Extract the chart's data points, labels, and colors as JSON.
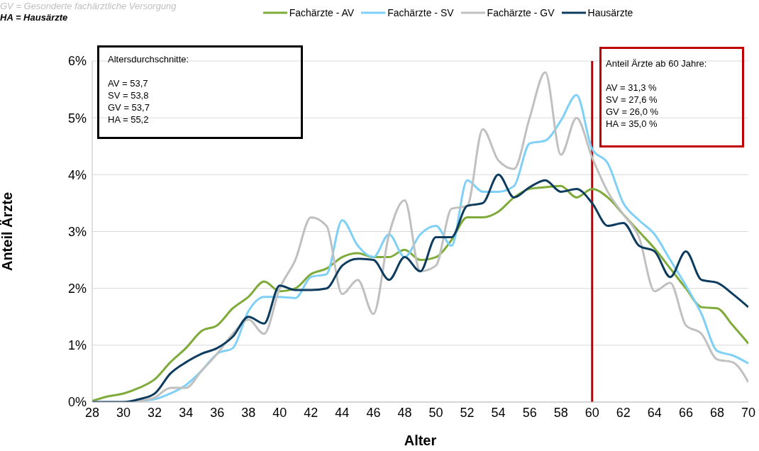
{
  "chart_data": {
    "type": "line",
    "xlabel": "Alter",
    "ylabel": "Anteil Ärzte",
    "x": [
      28,
      29,
      30,
      31,
      32,
      33,
      34,
      35,
      36,
      37,
      38,
      39,
      40,
      41,
      42,
      43,
      44,
      45,
      46,
      47,
      48,
      49,
      50,
      51,
      52,
      53,
      54,
      55,
      56,
      57,
      58,
      59,
      60,
      61,
      62,
      63,
      64,
      65,
      66,
      67,
      68,
      69,
      70
    ],
    "series": [
      {
        "name": "Fachärzte - AV",
        "color": "#7fab3a",
        "values": [
          0.02,
          0.1,
          0.15,
          0.25,
          0.4,
          0.7,
          0.95,
          1.25,
          1.35,
          1.65,
          1.85,
          2.12,
          1.95,
          2.0,
          2.25,
          2.35,
          2.55,
          2.62,
          2.55,
          2.55,
          2.68,
          2.5,
          2.55,
          2.85,
          3.25,
          3.25,
          3.35,
          3.6,
          3.75,
          3.78,
          3.8,
          3.6,
          3.75,
          3.6,
          3.3,
          3.0,
          2.7,
          2.35,
          2.0,
          1.67,
          1.65,
          1.35,
          1.03
        ]
      },
      {
        "name": "Fachärzte - SV",
        "color": "#7fd0f7",
        "values": [
          null,
          null,
          0,
          0.02,
          0.05,
          0.15,
          0.3,
          0.55,
          0.85,
          0.95,
          1.6,
          1.85,
          1.85,
          1.83,
          2.2,
          2.25,
          3.2,
          2.75,
          2.55,
          2.95,
          2.55,
          2.95,
          3.1,
          2.75,
          3.9,
          3.7,
          3.7,
          3.8,
          4.55,
          4.6,
          4.95,
          5.4,
          4.45,
          4.2,
          3.5,
          3.2,
          2.95,
          2.5,
          2.05,
          1.55,
          0.9,
          0.82,
          0.68
        ]
      },
      {
        "name": "Fachärzte - GV",
        "color": "#c0c0c0",
        "values": [
          0,
          0,
          0,
          0.02,
          0.08,
          0.25,
          0.25,
          0.55,
          0.85,
          1.2,
          1.45,
          1.2,
          2.0,
          2.5,
          3.25,
          3.1,
          1.9,
          2.15,
          1.55,
          2.95,
          3.55,
          2.3,
          2.4,
          3.4,
          3.45,
          4.8,
          4.25,
          4.1,
          5.0,
          5.8,
          4.35,
          5.0,
          4.3,
          3.7,
          3.3,
          2.9,
          1.95,
          2.1,
          1.35,
          1.2,
          0.75,
          0.7,
          0.35
        ]
      },
      {
        "name": "Hausärzte",
        "color": "#0d3c5f",
        "values": [
          0,
          0,
          0,
          0.05,
          0.15,
          0.5,
          0.7,
          0.85,
          0.95,
          1.15,
          1.5,
          1.38,
          2.05,
          1.97,
          1.97,
          2.0,
          2.4,
          2.52,
          2.5,
          2.15,
          2.55,
          2.3,
          2.9,
          2.9,
          3.45,
          3.5,
          4.0,
          3.6,
          3.78,
          3.9,
          3.7,
          3.75,
          3.5,
          3.1,
          3.15,
          2.75,
          2.65,
          2.2,
          2.65,
          2.15,
          2.1,
          1.9,
          1.67
        ]
      }
    ],
    "xlim": [
      28,
      70
    ],
    "xticks": [
      28,
      30,
      32,
      34,
      36,
      38,
      40,
      42,
      44,
      46,
      48,
      50,
      52,
      54,
      56,
      58,
      60,
      62,
      64,
      66,
      68,
      70
    ],
    "ylim": [
      0,
      6
    ],
    "yticks": [
      {
        "value": 0,
        "label": "0%"
      },
      {
        "value": 1,
        "label": "1%"
      },
      {
        "value": 2,
        "label": "2%"
      },
      {
        "value": 3,
        "label": "3%"
      },
      {
        "value": 4,
        "label": "4%"
      },
      {
        "value": 5,
        "label": "5%"
      },
      {
        "value": 6,
        "label": "6%"
      }
    ],
    "grid": "y",
    "legend": "top",
    "marker": "none",
    "line_style": "solid",
    "ref_lines": [
      {
        "axis": "x",
        "value": 60,
        "color": "#c00000",
        "line_style": "solid"
      }
    ],
    "annotations": [
      "GV = Gesonderte fachärztliche Versorgung",
      "HA = Hausärzte",
      "Altersdurchschnitte:\n\nAV = 53,7\nSV = 53,8\nGV = 53,7\nHA = 55,2",
      "Anteil Ärzte ab 60 Jahre:\n\nAV = 31,3 %\nSV = 27,6 %\nGV = 26,0 %\nHA = 35,0 %"
    ]
  }
}
